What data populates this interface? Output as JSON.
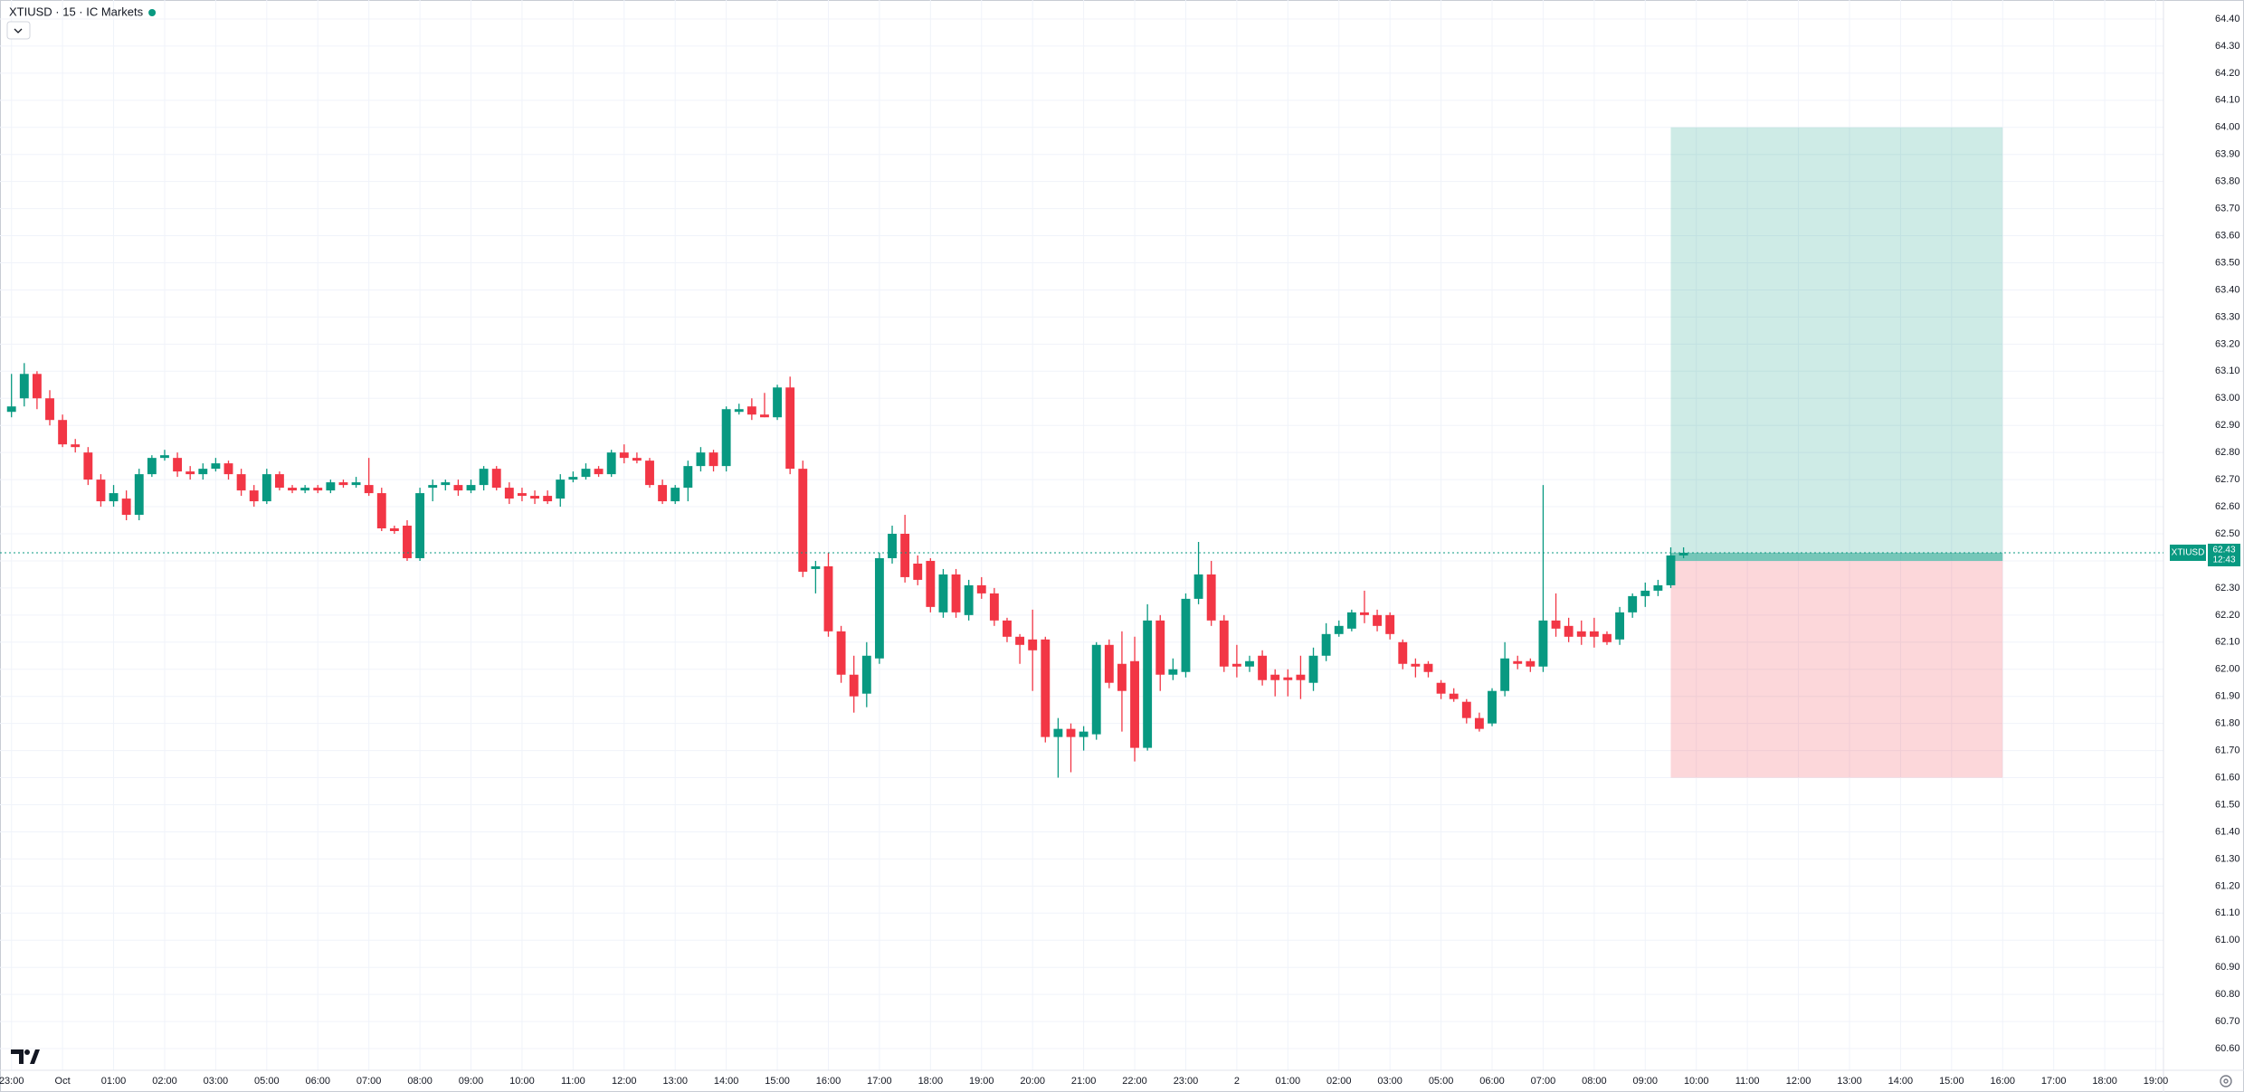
{
  "chart_data": {
    "type": "candlestick",
    "title": "XTIUSD · 15 · IC Markets",
    "up_color": "#089981",
    "down_color": "#f23645",
    "grid": true,
    "xlim": [
      -0.9,
      168.6
    ],
    "ylim": [
      60.52,
      64.47
    ],
    "xticks": [
      {
        "value": 0,
        "label": "23:00"
      },
      {
        "value": 4,
        "label": "Oct"
      },
      {
        "value": 8,
        "label": "01:00"
      },
      {
        "value": 12,
        "label": "02:00"
      },
      {
        "value": 16,
        "label": "03:00"
      },
      {
        "value": 20,
        "label": "05:00"
      },
      {
        "value": 24,
        "label": "06:00"
      },
      {
        "value": 28,
        "label": "07:00"
      },
      {
        "value": 32,
        "label": "08:00"
      },
      {
        "value": 36,
        "label": "09:00"
      },
      {
        "value": 40,
        "label": "10:00"
      },
      {
        "value": 44,
        "label": "11:00"
      },
      {
        "value": 48,
        "label": "12:00"
      },
      {
        "value": 52,
        "label": "13:00"
      },
      {
        "value": 56,
        "label": "14:00"
      },
      {
        "value": 60,
        "label": "15:00"
      },
      {
        "value": 64,
        "label": "16:00"
      },
      {
        "value": 68,
        "label": "17:00"
      },
      {
        "value": 72,
        "label": "18:00"
      },
      {
        "value": 76,
        "label": "19:00"
      },
      {
        "value": 80,
        "label": "20:00"
      },
      {
        "value": 84,
        "label": "21:00"
      },
      {
        "value": 88,
        "label": "22:00"
      },
      {
        "value": 92,
        "label": "23:00"
      },
      {
        "value": 96,
        "label": "2"
      },
      {
        "value": 100,
        "label": "01:00"
      },
      {
        "value": 104,
        "label": "02:00"
      },
      {
        "value": 108,
        "label": "03:00"
      },
      {
        "value": 112,
        "label": "05:00"
      },
      {
        "value": 116,
        "label": "06:00"
      },
      {
        "value": 120,
        "label": "07:00"
      },
      {
        "value": 124,
        "label": "08:00"
      },
      {
        "value": 128,
        "label": "09:00"
      },
      {
        "value": 132,
        "label": "10:00"
      },
      {
        "value": 136,
        "label": "11:00"
      },
      {
        "value": 140,
        "label": "12:00"
      },
      {
        "value": 144,
        "label": "13:00"
      },
      {
        "value": 148,
        "label": "14:00"
      },
      {
        "value": 152,
        "label": "15:00"
      },
      {
        "value": 156,
        "label": "16:00"
      },
      {
        "value": 160,
        "label": "17:00"
      },
      {
        "value": 164,
        "label": "18:00"
      },
      {
        "value": 168,
        "label": "19:00"
      }
    ],
    "yticks": [
      {
        "value": 60.6,
        "label": "60.60"
      },
      {
        "value": 60.7,
        "label": "60.70"
      },
      {
        "value": 60.8,
        "label": "60.80"
      },
      {
        "value": 60.9,
        "label": "60.90"
      },
      {
        "value": 61.0,
        "label": "61.00"
      },
      {
        "value": 61.1,
        "label": "61.10"
      },
      {
        "value": 61.2,
        "label": "61.20"
      },
      {
        "value": 61.3,
        "label": "61.30"
      },
      {
        "value": 61.4,
        "label": "61.40"
      },
      {
        "value": 61.5,
        "label": "61.50"
      },
      {
        "value": 61.6,
        "label": "61.60"
      },
      {
        "value": 61.7,
        "label": "61.70"
      },
      {
        "value": 61.8,
        "label": "61.80"
      },
      {
        "value": 61.9,
        "label": "61.90"
      },
      {
        "value": 62.0,
        "label": "62.00"
      },
      {
        "value": 62.1,
        "label": "62.10"
      },
      {
        "value": 62.2,
        "label": "62.20"
      },
      {
        "value": 62.3,
        "label": "62.30"
      },
      {
        "value": 62.4,
        "label": "62.40"
      },
      {
        "value": 62.5,
        "label": "62.50"
      },
      {
        "value": 62.6,
        "label": "62.60"
      },
      {
        "value": 62.7,
        "label": "62.70"
      },
      {
        "value": 62.8,
        "label": "62.80"
      },
      {
        "value": 62.9,
        "label": "62.90"
      },
      {
        "value": 63.0,
        "label": "63.00"
      },
      {
        "value": 63.1,
        "label": "63.10"
      },
      {
        "value": 63.2,
        "label": "63.20"
      },
      {
        "value": 63.3,
        "label": "63.30"
      },
      {
        "value": 63.4,
        "label": "63.40"
      },
      {
        "value": 63.5,
        "label": "63.50"
      },
      {
        "value": 63.6,
        "label": "63.60"
      },
      {
        "value": 63.7,
        "label": "63.70"
      },
      {
        "value": 63.8,
        "label": "63.80"
      },
      {
        "value": 63.9,
        "label": "63.90"
      },
      {
        "value": 64.0,
        "label": "64.00"
      },
      {
        "value": 64.1,
        "label": "64.10"
      },
      {
        "value": 64.2,
        "label": "64.20"
      },
      {
        "value": 64.3,
        "label": "64.30"
      },
      {
        "value": 64.4,
        "label": "64.40"
      }
    ],
    "open": [
      62.95,
      63.0,
      63.09,
      63.0,
      62.92,
      62.83,
      62.8,
      62.7,
      62.62,
      62.63,
      62.57,
      62.72,
      62.78,
      62.78,
      62.73,
      62.72,
      62.74,
      62.76,
      62.72,
      62.66,
      62.62,
      62.72,
      62.67,
      62.66,
      62.67,
      62.66,
      62.69,
      62.68,
      62.68,
      62.65,
      62.52,
      62.53,
      62.41,
      62.67,
      62.68,
      62.68,
      62.66,
      62.68,
      62.74,
      62.67,
      62.65,
      62.64,
      62.64,
      62.63,
      62.7,
      62.71,
      62.74,
      62.72,
      62.8,
      62.78,
      62.77,
      62.68,
      62.62,
      62.67,
      62.75,
      62.8,
      62.75,
      62.95,
      62.97,
      62.94,
      62.93,
      63.04,
      62.74,
      62.37,
      62.38,
      62.14,
      61.98,
      61.91,
      62.04,
      62.41,
      62.5,
      62.39,
      62.4,
      62.21,
      62.35,
      62.2,
      62.31,
      62.28,
      62.18,
      62.12,
      62.11,
      62.11,
      61.75,
      61.78,
      61.75,
      61.76,
      62.09,
      62.02,
      62.03,
      61.71,
      62.18,
      61.98,
      61.99,
      62.26,
      62.35,
      62.18,
      62.02,
      62.01,
      62.05,
      61.98,
      61.97,
      61.98,
      61.95,
      62.05,
      62.13,
      62.15,
      62.21,
      62.2,
      62.2,
      62.1,
      62.02,
      62.02,
      61.95,
      61.91,
      61.88,
      61.82,
      61.8,
      61.92,
      62.03,
      62.03,
      62.01,
      62.18,
      62.16,
      62.14,
      62.14,
      62.13,
      62.11,
      62.21,
      62.27,
      62.29,
      62.31,
      62.42
    ],
    "high": [
      63.09,
      63.13,
      63.1,
      63.03,
      62.94,
      62.85,
      62.82,
      62.72,
      62.68,
      62.66,
      62.74,
      62.79,
      62.81,
      62.8,
      62.75,
      62.76,
      62.78,
      62.77,
      62.74,
      62.68,
      62.74,
      62.73,
      62.68,
      62.68,
      62.68,
      62.7,
      62.7,
      62.71,
      62.78,
      62.67,
      62.53,
      62.55,
      62.67,
      62.7,
      62.7,
      62.7,
      62.7,
      62.75,
      62.75,
      62.69,
      62.67,
      62.66,
      62.66,
      62.72,
      62.73,
      62.76,
      62.75,
      62.81,
      62.83,
      62.8,
      62.78,
      62.7,
      62.68,
      62.77,
      62.82,
      62.81,
      62.97,
      62.98,
      63.0,
      63.02,
      63.05,
      63.08,
      62.77,
      62.4,
      62.43,
      62.16,
      62.05,
      62.1,
      62.43,
      62.53,
      62.57,
      62.42,
      62.41,
      62.37,
      62.37,
      62.33,
      62.34,
      62.3,
      62.19,
      62.13,
      62.22,
      62.12,
      61.82,
      61.8,
      61.79,
      62.1,
      62.11,
      62.14,
      62.12,
      62.24,
      62.2,
      62.04,
      62.28,
      62.47,
      62.4,
      62.2,
      62.09,
      62.05,
      62.07,
      62.0,
      62.0,
      62.05,
      62.08,
      62.17,
      62.18,
      62.22,
      62.29,
      62.22,
      62.21,
      62.11,
      62.04,
      62.03,
      61.96,
      61.93,
      61.89,
      61.84,
      61.93,
      62.1,
      62.05,
      62.04,
      62.68,
      62.28,
      62.19,
      62.18,
      62.19,
      62.14,
      62.23,
      62.28,
      62.32,
      62.33,
      62.45,
      62.45
    ],
    "low": [
      62.93,
      62.97,
      62.96,
      62.9,
      62.82,
      62.8,
      62.68,
      62.6,
      62.6,
      62.55,
      62.55,
      62.71,
      62.77,
      62.71,
      62.7,
      62.7,
      62.73,
      62.7,
      62.64,
      62.6,
      62.61,
      62.66,
      62.65,
      62.65,
      62.65,
      62.65,
      62.67,
      62.67,
      62.64,
      62.51,
      62.5,
      62.4,
      62.4,
      62.62,
      62.66,
      62.64,
      62.65,
      62.66,
      62.66,
      62.61,
      62.62,
      62.61,
      62.61,
      62.6,
      62.69,
      62.7,
      62.71,
      62.71,
      62.76,
      62.76,
      62.67,
      62.61,
      62.61,
      62.62,
      62.73,
      62.73,
      62.73,
      62.94,
      62.92,
      62.93,
      62.92,
      62.72,
      62.34,
      62.28,
      62.12,
      61.95,
      61.84,
      61.86,
      62.02,
      62.39,
      62.32,
      62.31,
      62.21,
      62.19,
      62.19,
      62.18,
      62.26,
      62.16,
      62.1,
      62.02,
      61.92,
      61.73,
      61.6,
      61.62,
      61.7,
      61.74,
      61.93,
      61.77,
      61.66,
      61.7,
      61.92,
      61.96,
      61.97,
      62.24,
      62.16,
      61.99,
      61.97,
      61.99,
      61.94,
      61.9,
      61.9,
      61.89,
      61.92,
      62.03,
      62.12,
      62.14,
      62.17,
      62.14,
      62.11,
      62.0,
      61.97,
      61.97,
      61.89,
      61.88,
      61.8,
      61.77,
      61.79,
      61.9,
      62.0,
      61.99,
      61.99,
      62.12,
      62.1,
      62.09,
      62.08,
      62.09,
      62.09,
      62.19,
      62.23,
      62.27,
      62.3,
      62.41
    ],
    "close": [
      62.97,
      63.09,
      63.0,
      62.92,
      62.83,
      62.82,
      62.7,
      62.62,
      62.65,
      62.57,
      62.72,
      62.78,
      62.79,
      62.73,
      62.72,
      62.74,
      62.76,
      62.72,
      62.66,
      62.62,
      62.72,
      62.67,
      62.66,
      62.67,
      62.66,
      62.69,
      62.68,
      62.69,
      62.65,
      62.52,
      62.51,
      62.41,
      62.65,
      62.68,
      62.69,
      62.66,
      62.68,
      62.74,
      62.67,
      62.63,
      62.64,
      62.63,
      62.62,
      62.7,
      62.71,
      62.74,
      62.72,
      62.8,
      62.78,
      62.77,
      62.68,
      62.62,
      62.67,
      62.75,
      62.8,
      62.75,
      62.96,
      62.96,
      62.94,
      62.93,
      63.04,
      62.74,
      62.36,
      62.38,
      62.14,
      61.98,
      61.9,
      62.05,
      62.41,
      62.5,
      62.34,
      62.33,
      62.23,
      62.35,
      62.21,
      62.31,
      62.28,
      62.18,
      62.12,
      62.09,
      62.07,
      61.75,
      61.78,
      61.75,
      61.77,
      62.09,
      61.95,
      61.92,
      61.71,
      62.18,
      61.98,
      62.0,
      62.26,
      62.35,
      62.18,
      62.01,
      62.01,
      62.03,
      61.96,
      61.96,
      61.96,
      61.96,
      62.05,
      62.13,
      62.16,
      62.21,
      62.2,
      62.16,
      62.13,
      62.02,
      62.01,
      61.99,
      61.91,
      61.89,
      61.82,
      61.78,
      61.92,
      62.04,
      62.02,
      62.01,
      62.18,
      62.15,
      62.12,
      62.12,
      62.12,
      62.1,
      62.21,
      62.27,
      62.29,
      62.31,
      62.42,
      62.43
    ],
    "position": {
      "start": 130,
      "end": 156,
      "entry": 62.4,
      "take_profit": 64.0,
      "stop_loss": 61.6
    },
    "last_price": {
      "symbol": "XTIUSD",
      "value": 62.43,
      "countdown": "12:43"
    }
  }
}
